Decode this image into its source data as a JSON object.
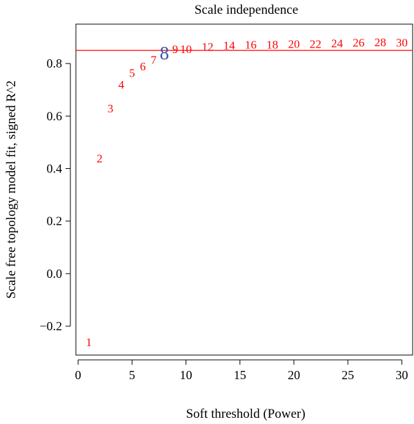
{
  "chart_data": {
    "type": "scatter",
    "title": "Scale independence",
    "xlabel": "Soft threshold (Power)",
    "ylabel": "Scale free topology model fit, signed R^2",
    "xlim": [
      -0.2,
      31.0
    ],
    "ylim": [
      -0.31,
      0.95
    ],
    "xticks": [
      0,
      5,
      10,
      15,
      20,
      25,
      30
    ],
    "yticks": [
      -0.2,
      0.0,
      0.2,
      0.4,
      0.6,
      0.8
    ],
    "ytick_labels": [
      "−0.2",
      "0.0",
      "0.2",
      "0.4",
      "0.6",
      "0.8"
    ],
    "grid": false,
    "threshold_line": {
      "y": 0.85,
      "color": "#ff0000"
    },
    "point_color": "#ff0000",
    "highlight_color": "#3a4fa8",
    "highlight_power": 8,
    "points": [
      {
        "label": "1",
        "x": 1,
        "y": -0.26
      },
      {
        "label": "2",
        "x": 2,
        "y": 0.44
      },
      {
        "label": "3",
        "x": 3,
        "y": 0.63
      },
      {
        "label": "4",
        "x": 4,
        "y": 0.72
      },
      {
        "label": "5",
        "x": 5,
        "y": 0.765
      },
      {
        "label": "6",
        "x": 6,
        "y": 0.79
      },
      {
        "label": "7",
        "x": 7,
        "y": 0.815
      },
      {
        "label": "8",
        "x": 8,
        "y": 0.84
      },
      {
        "label": "9",
        "x": 9,
        "y": 0.855
      },
      {
        "label": "10",
        "x": 10,
        "y": 0.855
      },
      {
        "label": "12",
        "x": 12,
        "y": 0.865
      },
      {
        "label": "14",
        "x": 14,
        "y": 0.87
      },
      {
        "label": "16",
        "x": 16,
        "y": 0.872
      },
      {
        "label": "18",
        "x": 18,
        "y": 0.872
      },
      {
        "label": "20",
        "x": 20,
        "y": 0.875
      },
      {
        "label": "22",
        "x": 22,
        "y": 0.875
      },
      {
        "label": "24",
        "x": 24,
        "y": 0.878
      },
      {
        "label": "26",
        "x": 26,
        "y": 0.88
      },
      {
        "label": "28",
        "x": 28,
        "y": 0.882
      },
      {
        "label": "30",
        "x": 30,
        "y": 0.88
      }
    ]
  }
}
